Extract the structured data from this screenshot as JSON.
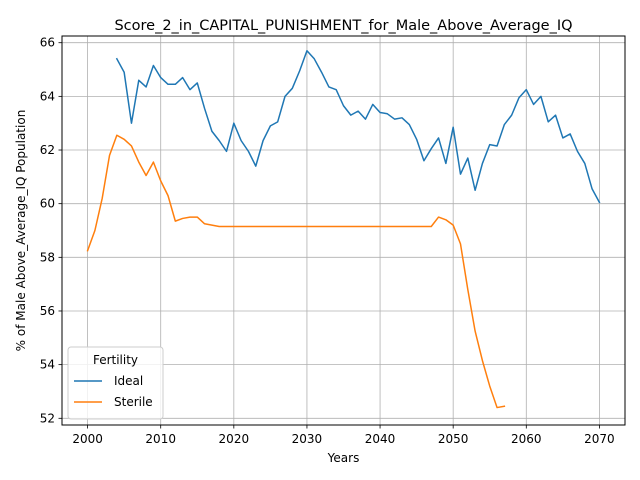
{
  "chart_data": {
    "type": "line",
    "title": "Score_2_in_CAPITAL_PUNISHMENT_for_Male_Above_Average_IQ",
    "xlabel": "Years",
    "ylabel": "% of Male Above_Average_IQ Population",
    "xlim": [
      1996.5,
      2073.5
    ],
    "ylim": [
      51.75,
      66.25
    ],
    "xticks": [
      2000,
      2010,
      2020,
      2030,
      2040,
      2050,
      2060,
      2070
    ],
    "yticks": [
      52,
      54,
      56,
      58,
      60,
      62,
      64,
      66
    ],
    "grid": true,
    "legend": {
      "title": "Fertility",
      "position": "lower-left"
    },
    "series": [
      {
        "name": "Ideal",
        "color": "#1f77b4",
        "x": [
          2004,
          2005,
          2006,
          2007,
          2008,
          2009,
          2010,
          2011,
          2012,
          2013,
          2014,
          2015,
          2016,
          2017,
          2018,
          2019,
          2020,
          2021,
          2022,
          2023,
          2024,
          2025,
          2026,
          2027,
          2028,
          2029,
          2030,
          2031,
          2032,
          2033,
          2034,
          2035,
          2036,
          2037,
          2038,
          2039,
          2040,
          2041,
          2042,
          2043,
          2044,
          2045,
          2046,
          2047,
          2048,
          2049,
          2050,
          2051,
          2052,
          2053,
          2054,
          2055,
          2056,
          2057,
          2058,
          2059,
          2060,
          2061,
          2062,
          2063,
          2064,
          2065,
          2066,
          2067,
          2068,
          2069,
          2070
        ],
        "y": [
          65.4,
          64.9,
          63.0,
          64.6,
          64.35,
          65.15,
          64.7,
          64.45,
          64.45,
          64.7,
          64.25,
          64.5,
          63.55,
          62.7,
          62.35,
          61.95,
          63.0,
          62.35,
          61.95,
          61.4,
          62.35,
          62.9,
          63.05,
          64.0,
          64.3,
          64.95,
          65.7,
          65.4,
          64.9,
          64.35,
          64.25,
          63.65,
          63.3,
          63.45,
          63.15,
          63.7,
          63.4,
          63.35,
          63.15,
          63.2,
          62.95,
          62.4,
          61.6,
          62.05,
          62.45,
          61.5,
          62.85,
          61.1,
          61.7,
          60.5,
          61.5,
          62.2,
          62.15,
          62.95,
          63.3,
          63.95,
          64.25,
          63.7,
          64.0,
          63.05,
          63.3,
          62.45,
          62.6,
          61.95,
          61.5,
          60.55,
          60.05
        ]
      },
      {
        "name": "Sterile",
        "color": "#ff7f0e",
        "x": [
          2000,
          2001,
          2002,
          2003,
          2004,
          2005,
          2006,
          2007,
          2008,
          2009,
          2010,
          2011,
          2012,
          2013,
          2014,
          2015,
          2016,
          2017,
          2018,
          2019,
          2020,
          2021,
          2022,
          2023,
          2024,
          2025,
          2026,
          2027,
          2028,
          2029,
          2030,
          2031,
          2032,
          2033,
          2034,
          2035,
          2036,
          2037,
          2038,
          2039,
          2040,
          2041,
          2042,
          2043,
          2044,
          2045,
          2046,
          2047,
          2048,
          2049,
          2050,
          2051,
          2052,
          2053,
          2054,
          2055,
          2056,
          2057
        ],
        "y": [
          58.25,
          59.0,
          60.2,
          61.8,
          62.55,
          62.4,
          62.15,
          61.55,
          61.05,
          61.55,
          60.85,
          60.3,
          59.35,
          59.45,
          59.5,
          59.5,
          59.25,
          59.2,
          59.15,
          59.15,
          59.15,
          59.15,
          59.15,
          59.15,
          59.15,
          59.15,
          59.15,
          59.15,
          59.15,
          59.15,
          59.15,
          59.15,
          59.15,
          59.15,
          59.15,
          59.15,
          59.15,
          59.15,
          59.15,
          59.15,
          59.15,
          59.15,
          59.15,
          59.15,
          59.15,
          59.15,
          59.15,
          59.15,
          59.5,
          59.4,
          59.2,
          58.5,
          56.8,
          55.25,
          54.15,
          53.2,
          52.4,
          52.45
        ]
      }
    ]
  }
}
